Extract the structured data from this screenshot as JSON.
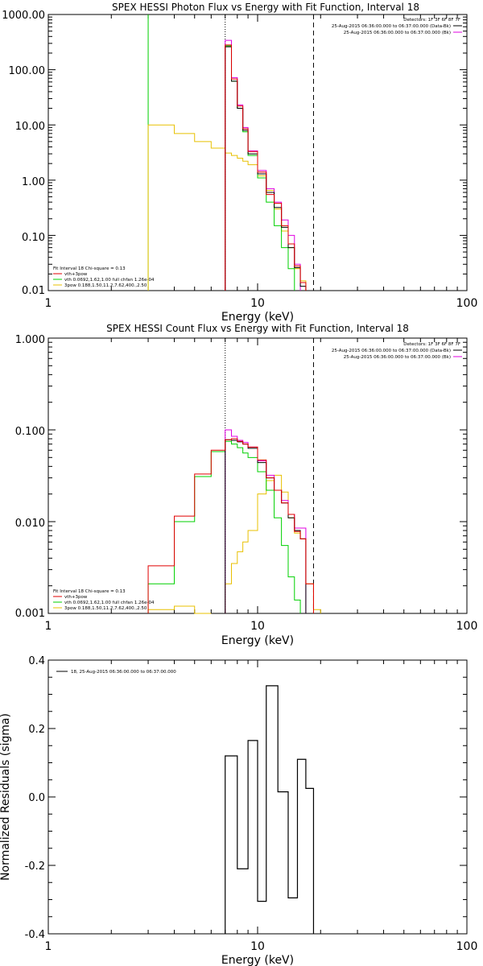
{
  "chart_data": [
    {
      "type": "line",
      "title": "SPEX HESSI Photon Flux vs Energy with Fit Function, Interval 18",
      "xlabel": "Energy (keV)",
      "ylabel": "",
      "xscale": "log",
      "yscale": "log",
      "xlim": [
        1,
        100
      ],
      "ylim": [
        0.01,
        1000
      ],
      "x_ticks": [
        "1",
        "10",
        "100"
      ],
      "y_ticks": [
        "0.01",
        "0.10",
        "1.00",
        "10.00",
        "100.00",
        "1000.00"
      ],
      "info_lines": [
        "Detectors: 1F 3F 6F 8F 7F",
        "25-Aug-2015 06:36:00.000 to 06:37:00.000 (Data-Bk)",
        "25-Aug-2015 06:36:00.000 to 06:37:00.000 (Bk)"
      ],
      "info_colors": [
        "",
        "#000000",
        "#e000e0"
      ],
      "legend_header": "Fit Interval 18   Chi-square = 0.13",
      "legend": [
        {
          "label": "vth+3pow",
          "color": "#e00000"
        },
        {
          "label": "vth 0.0692,1.62,1.00  full chfan 1.26e-04",
          "color": "#00d000"
        },
        {
          "label": "3pow 0.188,1.50,11.2,7.62,400.,2.50",
          "color": "#e8c000"
        }
      ],
      "vlines": [
        {
          "x": 7.0,
          "style": "dotted",
          "color": "#000000"
        },
        {
          "x": 18.5,
          "style": "dashed",
          "color": "#000000"
        }
      ],
      "edges": [
        3.0,
        4.0,
        5.0,
        6.0,
        7.0,
        7.5,
        8.0,
        8.5,
        9.0,
        10.0,
        11.0,
        12.0,
        13.0,
        14.0,
        15.0,
        16.0,
        17.0,
        18.5,
        20.0,
        22.0,
        25.0
      ],
      "series": [
        {
          "name": "data",
          "color": "#000000",
          "values": [
            null,
            null,
            null,
            null,
            260,
            62,
            20,
            8,
            3.0,
            1.3,
            0.6,
            0.32,
            0.14,
            0.06,
            0.026,
            0.012,
            null,
            null,
            null,
            null
          ]
        },
        {
          "name": "bk",
          "color": "#e000e0",
          "values": [
            null,
            null,
            null,
            null,
            340,
            72,
            23,
            9,
            3.4,
            1.5,
            0.7,
            0.4,
            0.19,
            0.1,
            0.03,
            null,
            null,
            null,
            null,
            null
          ]
        },
        {
          "name": "vth+3pow",
          "color": "#e00000",
          "values": [
            null,
            null,
            null,
            null,
            280,
            68,
            22,
            8.5,
            3.3,
            1.4,
            0.55,
            0.38,
            0.15,
            0.07,
            0.028,
            0.014,
            null,
            null,
            null,
            null
          ]
        },
        {
          "name": "vth",
          "color": "#00d000",
          "values": [
            null,
            null,
            null,
            null,
            270,
            62,
            20,
            7.5,
            2.8,
            1.1,
            0.4,
            0.15,
            0.06,
            0.025,
            null,
            null,
            null,
            null,
            null,
            null
          ]
        },
        {
          "name": "3pow",
          "color": "#e8c000",
          "values": [
            10,
            7.0,
            5.0,
            3.8,
            3.1,
            2.8,
            2.5,
            2.2,
            1.9,
            1.2,
            0.65,
            0.3,
            0.12,
            0.06,
            0.025,
            0.015,
            null,
            null,
            null,
            null
          ]
        }
      ],
      "green_spike_x": 3.0
    },
    {
      "type": "line",
      "title": "SPEX HESSI Count Flux vs Energy with Fit Function, Interval 18",
      "xlabel": "Energy (keV)",
      "ylabel": "",
      "xscale": "log",
      "yscale": "log",
      "xlim": [
        1,
        100
      ],
      "ylim": [
        0.001,
        1.0
      ],
      "x_ticks": [
        "1",
        "10",
        "100"
      ],
      "y_ticks": [
        "0.001",
        "0.010",
        "0.100",
        "1.000"
      ],
      "info_lines": [
        "Detectors: 1F 3F 6F 8F 7F",
        "25-Aug-2015 06:36:00.000 to 06:37:00.000 (Data-Bk)",
        "25-Aug-2015 06:36:00.000 to 06:37:00.000 (Bk)"
      ],
      "info_colors": [
        "",
        "#000000",
        "#e000e0"
      ],
      "legend_header": "Fit Interval 18   Chi-square = 0.13",
      "legend": [
        {
          "label": "vth+3pow",
          "color": "#e00000"
        },
        {
          "label": "vth 0.0692,1.62,1.00  full chfan 1.26e-04",
          "color": "#00d000"
        },
        {
          "label": "3pow 0.188,1.50,11.2,7.62,400.,2.50",
          "color": "#e8c000"
        }
      ],
      "vlines": [
        {
          "x": 7.0,
          "style": "dotted",
          "color": "#000000"
        },
        {
          "x": 18.5,
          "style": "dashed",
          "color": "#000000"
        }
      ],
      "edges": [
        3.0,
        4.0,
        5.0,
        6.0,
        7.0,
        7.5,
        8.0,
        8.5,
        9.0,
        10.0,
        11.0,
        12.0,
        13.0,
        14.0,
        15.0,
        16.0,
        17.0,
        18.5,
        20.0,
        22.0,
        25.0
      ],
      "series": [
        {
          "name": "data",
          "color": "#000000",
          "values": [
            null,
            null,
            null,
            null,
            0.078,
            0.077,
            0.074,
            0.07,
            0.063,
            0.044,
            0.03,
            0.022,
            0.016,
            0.011,
            0.008,
            0.0065,
            null,
            null,
            null,
            null
          ]
        },
        {
          "name": "bk",
          "color": "#e000e0",
          "values": [
            null,
            null,
            null,
            null,
            0.1,
            0.085,
            0.077,
            0.073,
            0.065,
            0.046,
            0.032,
            0.022,
            0.017,
            0.012,
            0.0085,
            0.0085,
            null,
            null,
            null,
            null
          ]
        },
        {
          "name": "vth+3pow",
          "color": "#e00000",
          "values": [
            0.0033,
            0.0115,
            0.033,
            0.06,
            0.078,
            0.08,
            0.075,
            0.07,
            0.065,
            0.047,
            0.03,
            0.022,
            0.016,
            0.012,
            0.0078,
            0.0065,
            0.0021,
            null,
            null,
            null
          ]
        },
        {
          "name": "vth",
          "color": "#00d000",
          "values": [
            0.0021,
            0.01,
            0.031,
            0.058,
            0.075,
            0.07,
            0.064,
            0.056,
            0.05,
            0.035,
            0.022,
            0.011,
            0.0055,
            0.0025,
            0.0014,
            null,
            null,
            null,
            null,
            null
          ]
        },
        {
          "name": "3pow",
          "color": "#e8c000",
          "values": [
            0.0011,
            0.0012,
            0.001,
            null,
            0.0021,
            0.0035,
            0.0047,
            0.006,
            0.008,
            0.02,
            0.028,
            0.032,
            0.021,
            0.011,
            0.0075,
            0.0065,
            0.0021,
            0.0011,
            null,
            null
          ]
        }
      ]
    },
    {
      "type": "line",
      "title": "",
      "xlabel": "Energy (keV)",
      "ylabel": "Normalized Residuals (sigma)",
      "xscale": "log",
      "yscale": "linear",
      "xlim": [
        1,
        100
      ],
      "ylim": [
        -0.4,
        0.4
      ],
      "x_ticks": [
        "1",
        "10",
        "100"
      ],
      "y_ticks": [
        "-0.4",
        "-0.2",
        "0.0",
        "0.2",
        "0.4"
      ],
      "legend": [
        {
          "label": "18, 25-Aug-2015 06:36:00.000 to 06:37:00.000",
          "color": "#000000"
        }
      ],
      "edges": [
        7.0,
        8.0,
        9.0,
        10.0,
        11.0,
        12.5,
        14.0,
        15.5,
        17.0,
        18.5
      ],
      "values": [
        0.12,
        -0.21,
        0.165,
        -0.305,
        0.325,
        0.015,
        -0.295,
        0.11,
        0.025
      ],
      "bottom": -0.4
    }
  ]
}
